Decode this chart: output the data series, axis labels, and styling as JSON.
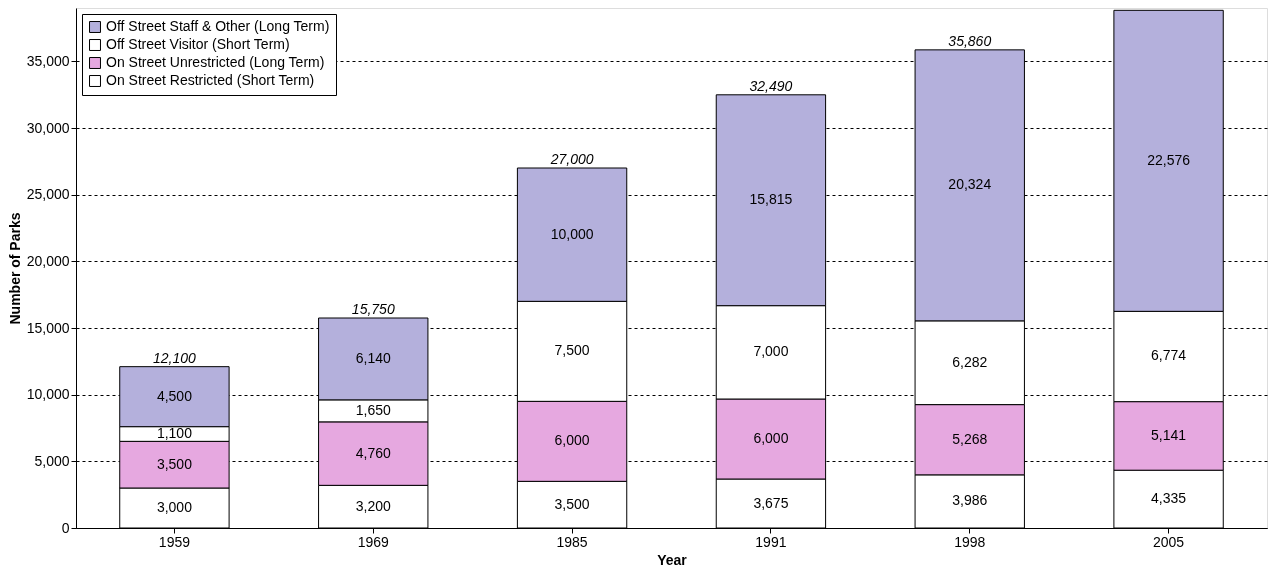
{
  "chart_data": {
    "type": "bar",
    "stacked": true,
    "xlabel": "Year",
    "ylabel": "Number of Parks",
    "categories": [
      "1959",
      "1969",
      "1985",
      "1991",
      "1998",
      "2005"
    ],
    "series": [
      {
        "name": "On Street Restricted (Short Term)",
        "color": "#ffffff",
        "values": [
          3000,
          3200,
          3500,
          3675,
          3986,
          4335
        ],
        "value_labels": [
          "3,000",
          "3,200",
          "3,500",
          "3,675",
          "3,986",
          "4,335"
        ]
      },
      {
        "name": "On Street Unrestricted (Long Term)",
        "color": "#e6a8e0",
        "values": [
          3500,
          4760,
          6000,
          6000,
          5268,
          5141
        ],
        "value_labels": [
          "3,500",
          "4,760",
          "6,000",
          "6,000",
          "5,268",
          "5,141"
        ]
      },
      {
        "name": "Off Street Visitor (Short Term)",
        "color": "#ffffff",
        "values": [
          1100,
          1650,
          7500,
          7000,
          6282,
          6774
        ],
        "value_labels": [
          "1,100",
          "1,650",
          "7,500",
          "7,000",
          "6,282",
          "6,774"
        ]
      },
      {
        "name": "Off Street Staff & Other (Long Term)",
        "color": "#b4b0dc",
        "values": [
          4500,
          6140,
          10000,
          15815,
          20324,
          22576
        ],
        "value_labels": [
          "4,500",
          "6,140",
          "10,000",
          "15,815",
          "20,324",
          "22,576"
        ]
      }
    ],
    "totals": [
      "12,100",
      "15,750",
      "27,000",
      "32,490",
      "35,860",
      null
    ],
    "ylim": [
      0,
      39000
    ],
    "yticks": [
      0,
      {
        "value": 5000,
        "label": "5,000"
      },
      {
        "value": 10000,
        "label": "10,000"
      },
      {
        "value": 15000,
        "label": "15,000"
      },
      {
        "value": 20000,
        "label": "20,000"
      },
      {
        "value": 25000,
        "label": "25,000"
      },
      {
        "value": 30000,
        "label": "30,000"
      },
      {
        "value": 35000,
        "label": "35,000"
      }
    ],
    "grid": "y",
    "legend": "top left"
  }
}
